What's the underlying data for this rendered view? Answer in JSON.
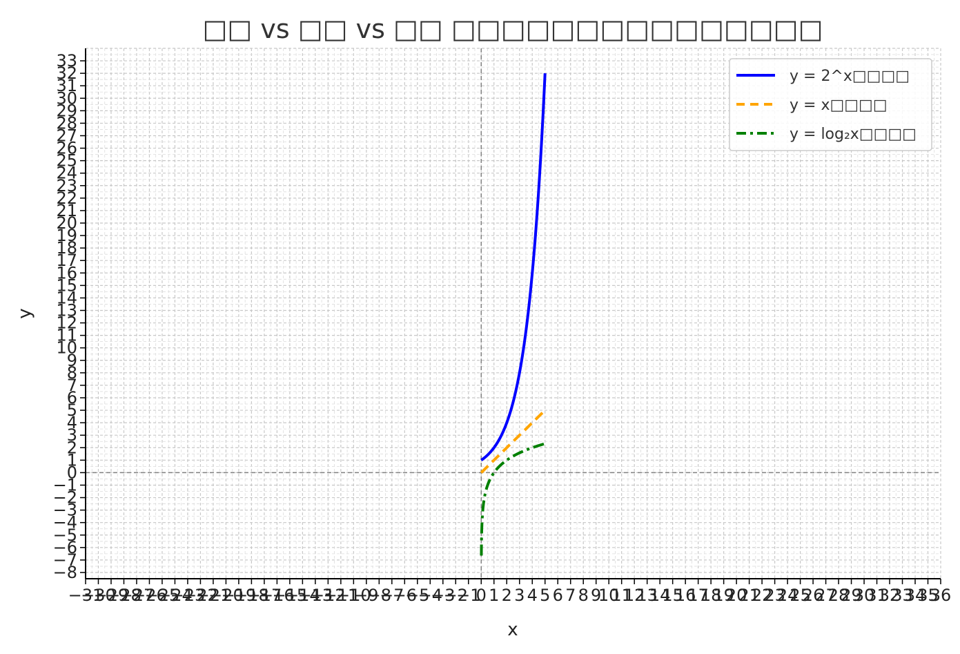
{
  "chart_data": {
    "type": "line",
    "title": "□□ vs □□ vs □□ □□□□□□□□□□□□□□□",
    "xlabel": "x",
    "ylabel": "y",
    "xlim": [
      -31,
      36
    ],
    "ylim": [
      -8.5,
      34
    ],
    "x_ticks": [
      -31,
      -30,
      -29,
      -28,
      -27,
      -26,
      -25,
      -24,
      -23,
      -22,
      -21,
      -20,
      -19,
      -18,
      -17,
      -16,
      -15,
      -14,
      -13,
      -12,
      -11,
      -10,
      -9,
      -8,
      -7,
      -6,
      -5,
      -4,
      -3,
      -2,
      -1,
      0,
      1,
      2,
      3,
      4,
      5,
      6,
      7,
      8,
      9,
      10,
      11,
      12,
      13,
      14,
      15,
      16,
      17,
      18,
      19,
      20,
      21,
      22,
      23,
      24,
      25,
      26,
      27,
      28,
      29,
      30,
      31,
      32,
      33,
      34,
      35,
      36
    ],
    "y_ticks": [
      -8,
      -7,
      -6,
      -5,
      -4,
      -3,
      -2,
      -1,
      0,
      1,
      2,
      3,
      4,
      5,
      6,
      7,
      8,
      9,
      10,
      11,
      12,
      13,
      14,
      15,
      16,
      17,
      18,
      19,
      20,
      21,
      22,
      23,
      24,
      25,
      26,
      27,
      28,
      29,
      30,
      31,
      32,
      33
    ],
    "grid": true,
    "legend_position": "top-right",
    "reference_lines": {
      "x": 0,
      "y": 0
    },
    "series": [
      {
        "name": "y = 2^x□□□□",
        "color": "#0000ff",
        "linestyle": "solid",
        "x": [
          0,
          0.5,
          1,
          1.5,
          2,
          2.5,
          3,
          3.5,
          4,
          4.5,
          5
        ],
        "y": [
          1,
          1.41,
          2,
          2.83,
          4,
          5.66,
          8,
          11.31,
          16,
          22.63,
          32
        ]
      },
      {
        "name": "y = x□□□□",
        "color": "#ffa500",
        "linestyle": "dashed",
        "x": [
          0,
          5
        ],
        "y": [
          0,
          5
        ]
      },
      {
        "name": "y = log₂x□□□□",
        "color": "#008000",
        "linestyle": "dashdot",
        "x": [
          0.01,
          0.02,
          0.05,
          0.1,
          0.2,
          0.35,
          0.5,
          0.75,
          1,
          1.5,
          2,
          2.5,
          3,
          3.5,
          4,
          4.5,
          5
        ],
        "y": [
          -6.64,
          -5.64,
          -4.32,
          -3.32,
          -2.32,
          -1.51,
          -1,
          -0.42,
          0,
          0.58,
          1,
          1.32,
          1.58,
          1.81,
          2,
          2.17,
          2.32
        ]
      }
    ]
  }
}
